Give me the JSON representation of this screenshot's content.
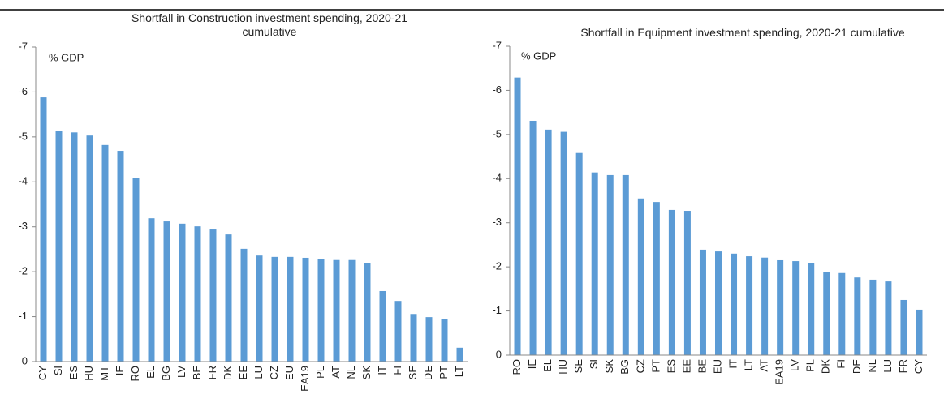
{
  "chart_data": [
    {
      "type": "bar",
      "title": "Shortfall in Construction investment spending, 2020-21 cumulative",
      "y_label": "% GDP",
      "categories": [
        "CY",
        "SI",
        "ES",
        "HU",
        "MT",
        "IE",
        "RO",
        "EL",
        "BG",
        "LV",
        "BE",
        "FR",
        "DK",
        "EE",
        "LU",
        "CZ",
        "EU",
        "EA19",
        "PL",
        "AT",
        "NL",
        "SK",
        "IT",
        "FI",
        "SE",
        "DE",
        "PT",
        "LT"
      ],
      "values": [
        -5.88,
        -5.14,
        -5.1,
        -5.03,
        -4.82,
        -4.69,
        -4.08,
        -3.19,
        -3.12,
        -3.07,
        -3.01,
        -2.94,
        -2.83,
        -2.51,
        -2.36,
        -2.33,
        -2.33,
        -2.31,
        -2.28,
        -2.26,
        -2.26,
        -2.2,
        -1.57,
        -1.35,
        -1.06,
        -0.99,
        -0.94,
        -0.31
      ],
      "color": "#5b9bd5",
      "ylim": [
        0,
        -7
      ],
      "yticks": [
        0,
        -1,
        -2,
        -3,
        -4,
        -5,
        -6,
        -7
      ]
    },
    {
      "type": "bar",
      "title": "Shortfall in Equipment investment spending, 2020-21 cumulative",
      "y_label": "% GDP",
      "categories": [
        "RO",
        "IE",
        "EL",
        "HU",
        "SE",
        "SI",
        "SK",
        "BG",
        "CZ",
        "PT",
        "ES",
        "EE",
        "BE",
        "EU",
        "IT",
        "LT",
        "AT",
        "EA19",
        "LV",
        "PL",
        "DK",
        "FI",
        "DE",
        "NL",
        "LU",
        "FR",
        "CY"
      ],
      "values": [
        -6.29,
        -5.31,
        -5.11,
        -5.06,
        -4.58,
        -4.14,
        -4.08,
        -4.08,
        -3.55,
        -3.47,
        -3.29,
        -3.27,
        -2.39,
        -2.35,
        -2.3,
        -2.24,
        -2.21,
        -2.15,
        -2.13,
        -2.08,
        -1.89,
        -1.86,
        -1.76,
        -1.71,
        -1.67,
        -1.25,
        -1.03
      ],
      "color": "#5b9bd5",
      "ylim": [
        0,
        -7
      ],
      "yticks": [
        0,
        -1,
        -2,
        -3,
        -4,
        -5,
        -6,
        -7
      ]
    }
  ]
}
